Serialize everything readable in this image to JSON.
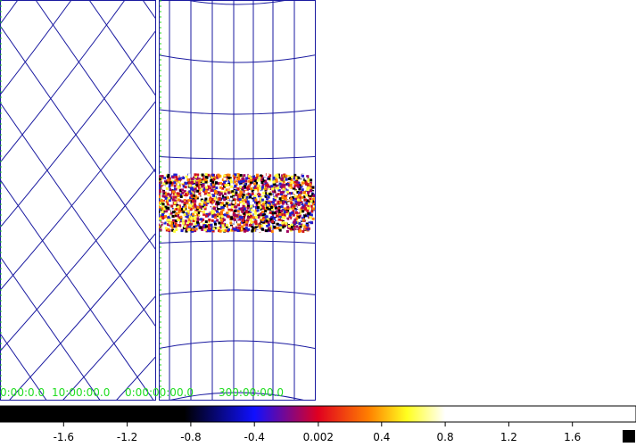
{
  "frame": {
    "axis_labels": [
      "0:00:0.0",
      "10:00:00.0",
      "0:00:00:00.0",
      "300:00:00.0"
    ]
  },
  "colorbar": {
    "lim": [
      -2,
      2
    ],
    "ticks": [
      -1.6,
      -1.2,
      -0.8,
      -0.4,
      0.002,
      0.4,
      0.8,
      1.2,
      1.6
    ]
  }
}
